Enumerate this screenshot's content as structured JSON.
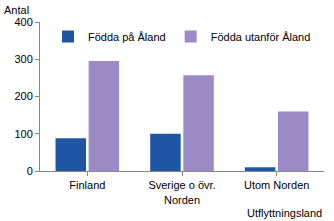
{
  "chart_data": {
    "type": "bar",
    "ylabel": "Antal",
    "xlabel": "Utflyttningsland",
    "categories": [
      "Finland",
      "Sverige o övr. Norden",
      "Utom Norden"
    ],
    "series": [
      {
        "name": "Födda på Åland",
        "color": "#1f56a4",
        "values": [
          88,
          100,
          10
        ]
      },
      {
        "name": "Födda utanför Åland",
        "color": "#9b8ac6",
        "values": [
          295,
          257,
          160
        ]
      }
    ],
    "ylim": [
      0,
      400
    ],
    "yticks": [
      0,
      100,
      200,
      300,
      400
    ],
    "grid": false,
    "legend": "top"
  }
}
